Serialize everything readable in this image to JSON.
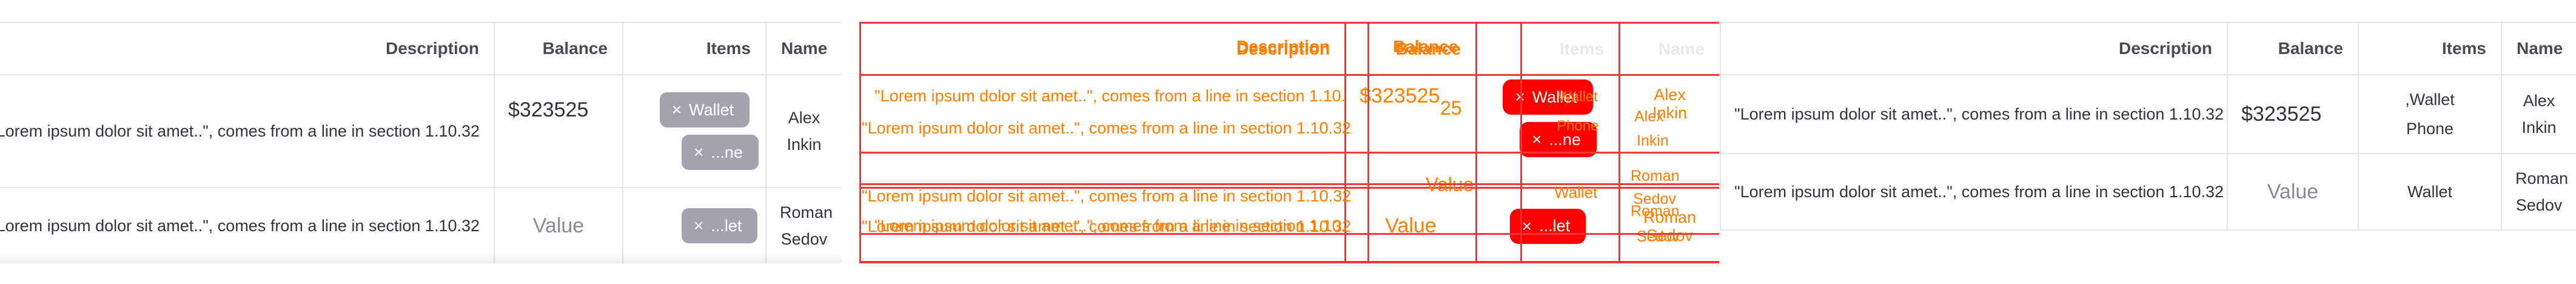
{
  "table": {
    "headers": {
      "description": "Description",
      "balance": "Balance",
      "items": "Items",
      "name": "Name"
    },
    "rows": [
      {
        "description": "\"Lorem ipsum dolor sit amet..\", comes from a line in section 1.10.32",
        "balance": "$323525",
        "items": [
          "Wallet",
          "...ne"
        ],
        "name_first": "Alex",
        "name_last": "Inkin"
      },
      {
        "description": "\"Lorem ipsum dolor sit amet..\", comes from a line in section 1.10.32",
        "balance": "Value",
        "items": [
          "...let"
        ],
        "name_first": "Roman",
        "name_last": "Sedov"
      }
    ]
  },
  "overlay": {
    "balance_partial": "25",
    "items_plain": [
      "Wallet",
      "Phone"
    ],
    "remove_glyph": "×"
  },
  "panel3": {
    "items_row1": ",Wallet",
    "items_row1_b": "Phone",
    "items_row2": "Wallet"
  },
  "colors": {
    "chip_bg": "#a3a3ad",
    "border": "#e3e3e8",
    "overlay_red": "#f03838",
    "overlay_orange": "#ff7d00"
  }
}
